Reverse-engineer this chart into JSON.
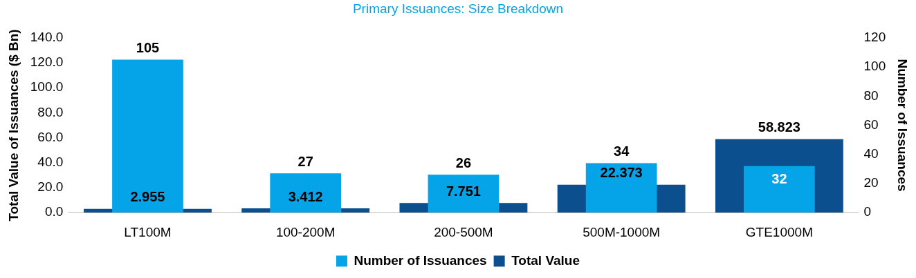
{
  "chart_data": {
    "type": "bar",
    "title": "Primary Issuances: Size Breakdown",
    "categories": [
      "LT100M",
      "100-200M",
      "200-500M",
      "500M-1000M",
      "GTE1000M"
    ],
    "series": [
      {
        "name": "Total Value",
        "color": "#0b4f8e",
        "values": [
          2.955,
          3.412,
          7.751,
          22.373,
          58.823
        ]
      },
      {
        "name": "Number of Issuances",
        "color": "#05a3e8",
        "axis": "y2",
        "values": [
          105,
          27,
          26,
          34,
          32
        ]
      }
    ],
    "ylabel": "Total Value of Issuances ($ Bn)",
    "y2label": "Number of Issuances",
    "ylim": [
      0,
      140
    ],
    "yticks": [
      {
        "value": 0,
        "label": "0.0"
      },
      {
        "value": 20,
        "label": "20.0"
      },
      {
        "value": 40,
        "label": "40.0"
      },
      {
        "value": 60,
        "label": "60.0"
      },
      {
        "value": 80,
        "label": "80.0"
      },
      {
        "value": 100,
        "label": "100.0"
      },
      {
        "value": 120,
        "label": "120.0"
      },
      {
        "value": 140,
        "label": "140.0"
      }
    ],
    "y2lim": [
      0,
      120
    ],
    "y2ticks": [
      0,
      20,
      40,
      60,
      80,
      100,
      120
    ],
    "data_labels": true,
    "grid": false,
    "legend": "bottom"
  }
}
